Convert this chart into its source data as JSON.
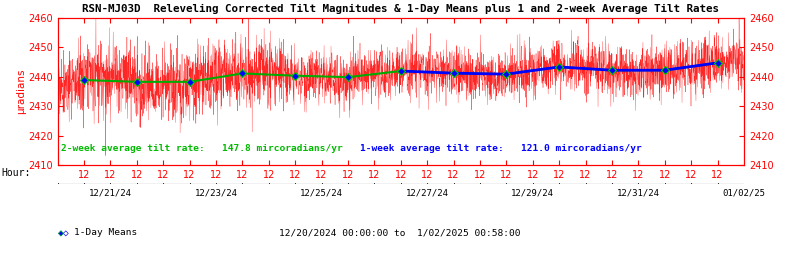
{
  "title": "RSN-MJ03D  Releveling Corrected Tilt Magnitudes & 1-Day Means plus 1 and 2-week Average Tilt Rates",
  "ylabel_left": "μradians",
  "ylim": [
    2410,
    2460
  ],
  "yticks": [
    2410,
    2420,
    2430,
    2440,
    2450,
    2460
  ],
  "date_labels": [
    "12/21/24",
    "12/23/24",
    "12/25/24",
    "12/27/24",
    "12/29/24",
    "12/31/24",
    "01/02/25"
  ],
  "time_range_label": "12/20/2024 00:00:00 to  1/02/2025 00:58:00",
  "annotation_2week": "2-week average tilt rate:   147.8 mircoradians/yr",
  "annotation_1week": "1-week average tilt rate:   121.0 mircoradians/yr",
  "annotation_2week_color": "#00bb00",
  "annotation_1week_color": "#0000ff",
  "noise_color": "#ff0000",
  "mean_line_color": "#00aa00",
  "week_line_color": "#0000ff",
  "diamond_fill_color": "#0000ff",
  "diamond_edge_color": "#00cc00",
  "title_color": "#000000",
  "axis_color": "#ff0000",
  "hour_label_color": "#ff0000",
  "background_color": "#ffffff",
  "plot_bg_color": "#ffffff",
  "num_days": 13,
  "base_value": 2438.2,
  "trend_rate": 0.42,
  "noise_amplitude": 4.5,
  "seed": 42
}
